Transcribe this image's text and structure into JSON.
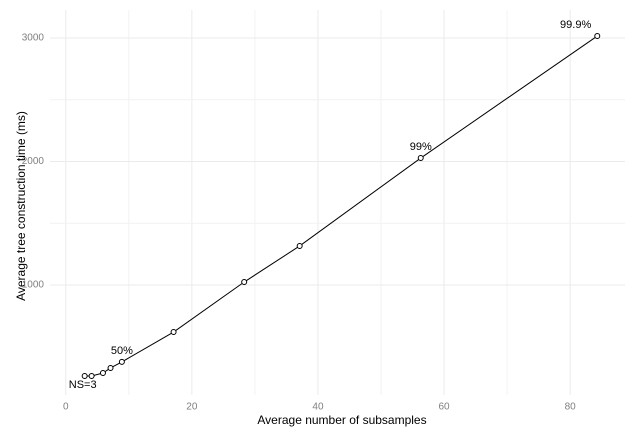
{
  "chart_data": {
    "type": "line",
    "x_label": "Average number of subsamples",
    "y_label": "Average tree construction time (ms)",
    "x": [
      3.0,
      4.1,
      5.9,
      7.1,
      8.9,
      17.1,
      28.3,
      37.1,
      56.3,
      84.3
    ],
    "values": [
      263,
      263,
      287,
      328,
      377,
      619,
      1024,
      1316,
      2028,
      3016
    ],
    "point_labels": [
      "NS=3",
      null,
      null,
      null,
      "50%",
      null,
      null,
      null,
      "99%",
      "99.9%"
    ],
    "color": "#000000",
    "xlim": [
      -2.5,
      88.7
    ],
    "xticks": [
      0,
      20,
      40,
      60,
      80
    ],
    "ylim": [
      109,
      3227
    ],
    "yticks": [
      1000,
      2000,
      3000
    ],
    "grid": true
  }
}
